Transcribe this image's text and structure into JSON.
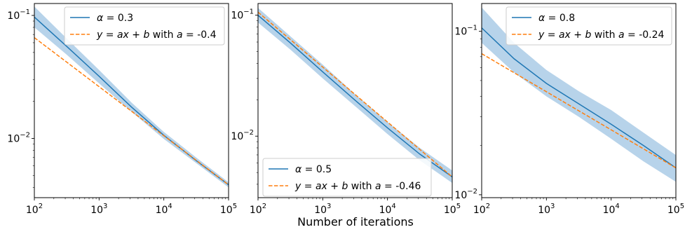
{
  "chart_data": [
    {
      "type": "line",
      "xscale": "log",
      "yscale": "log",
      "xlim": [
        100,
        100000
      ],
      "ylim": [
        0.0033,
        0.125
      ],
      "xticks": [
        100,
        1000,
        10000,
        100000
      ],
      "yticks": [
        0.01,
        0.1
      ],
      "legend": "top-right",
      "series": [
        {
          "name": "α = 0.3",
          "kind": "mean",
          "color": "#1f77b4",
          "x": [
            100,
            316,
            1000,
            3162,
            10000,
            31623,
            100000
          ],
          "y": [
            0.097,
            0.056,
            0.032,
            0.018,
            0.0106,
            0.0066,
            0.0042
          ],
          "band_lower": [
            0.08,
            0.048,
            0.028,
            0.0165,
            0.0099,
            0.0063,
            0.004
          ],
          "band_upper": [
            0.118,
            0.065,
            0.036,
            0.0196,
            0.0113,
            0.007,
            0.0044
          ]
        },
        {
          "name": "y = ax + b with a = -0.4",
          "kind": "fit",
          "color": "#ff7f0e",
          "x": [
            100,
            100000
          ],
          "y": [
            0.066,
            0.0042
          ]
        }
      ]
    },
    {
      "type": "line",
      "xscale": "log",
      "yscale": "log",
      "xlim": [
        100,
        100000
      ],
      "ylim": [
        0.0031,
        0.125
      ],
      "xticks": [
        100,
        1000,
        10000,
        100000
      ],
      "yticks": [
        0.01,
        0.1
      ],
      "legend": "bottom-left",
      "series": [
        {
          "name": "α = 0.5",
          "kind": "mean",
          "color": "#1f77b4",
          "x": [
            100,
            316,
            1000,
            3162,
            10000,
            31623,
            100000
          ],
          "y": [
            0.1,
            0.059,
            0.034,
            0.0198,
            0.0117,
            0.0071,
            0.0046
          ],
          "band_lower": [
            0.087,
            0.052,
            0.03,
            0.0177,
            0.0104,
            0.0063,
            0.0041
          ],
          "band_upper": [
            0.115,
            0.067,
            0.039,
            0.0222,
            0.0131,
            0.008,
            0.0052
          ]
        },
        {
          "name": "y = ax + b with a = -0.46",
          "kind": "fit",
          "color": "#ff7f0e",
          "x": [
            100,
            100000
          ],
          "y": [
            0.106,
            0.0046
          ]
        }
      ]
    },
    {
      "type": "line",
      "xscale": "log",
      "yscale": "log",
      "xlim": [
        100,
        100000
      ],
      "ylim": [
        0.0096,
        0.148
      ],
      "xticks": [
        100,
        1000,
        10000,
        100000
      ],
      "yticks": [
        0.01,
        0.1
      ],
      "legend": "top-right",
      "series": [
        {
          "name": "α = 0.8",
          "kind": "mean",
          "color": "#1f77b4",
          "x": [
            100,
            316,
            1000,
            3162,
            10000,
            31623,
            100000
          ],
          "y": [
            0.105,
            0.068,
            0.048,
            0.036,
            0.027,
            0.02,
            0.0146
          ],
          "band_lower": [
            0.085,
            0.056,
            0.04,
            0.03,
            0.022,
            0.016,
            0.012
          ],
          "band_upper": [
            0.14,
            0.085,
            0.058,
            0.043,
            0.033,
            0.024,
            0.0175
          ]
        },
        {
          "name": "y = ax + b with a = -0.24",
          "kind": "fit",
          "color": "#ff7f0e",
          "x": [
            100,
            100000
          ],
          "y": [
            0.073,
            0.0146
          ]
        }
      ]
    }
  ],
  "xlabel": "Number of iterations",
  "band_color": "#b7d3ea"
}
